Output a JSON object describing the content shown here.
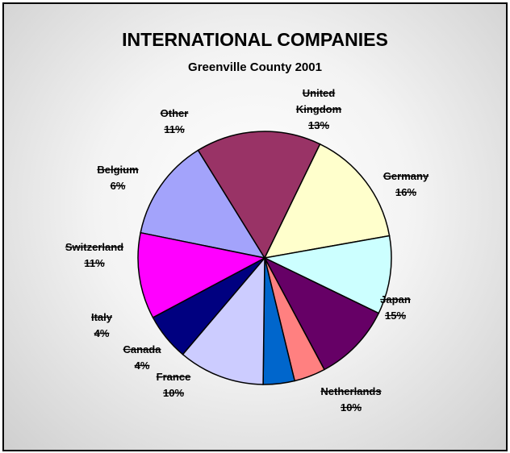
{
  "chart_data": {
    "type": "pie",
    "title": "INTERNATIONAL COMPANIES",
    "subtitle": "Greenville County 2001",
    "slices": [
      {
        "label": [
          "United",
          "Kingdom"
        ],
        "pct_text": "13%",
        "value": 13,
        "color": "#a3a3fb"
      },
      {
        "label": [
          "Germany"
        ],
        "pct_text": "16%",
        "value": 16,
        "color": "#993366"
      },
      {
        "label": [
          "Japan"
        ],
        "pct_text": "15%",
        "value": 15,
        "color": "#ffffcc"
      },
      {
        "label": [
          "Netherlands"
        ],
        "pct_text": "10%",
        "value": 10,
        "color": "#ccffff"
      },
      {
        "label": [
          "France"
        ],
        "pct_text": "10%",
        "value": 10,
        "color": "#660066"
      },
      {
        "label": [
          "Canada"
        ],
        "pct_text": "4%",
        "value": 4,
        "color": "#ff8080"
      },
      {
        "label": [
          "Italy"
        ],
        "pct_text": "4%",
        "value": 4,
        "color": "#0066cc"
      },
      {
        "label": [
          "Switzerland"
        ],
        "pct_text": "11%",
        "value": 11,
        "color": "#ccccff"
      },
      {
        "label": [
          "Belgium"
        ],
        "pct_text": "6%",
        "value": 6,
        "color": "#000080"
      },
      {
        "label": [
          "Other"
        ],
        "pct_text": "11%",
        "value": 11,
        "color": "#ff00ff"
      }
    ]
  }
}
